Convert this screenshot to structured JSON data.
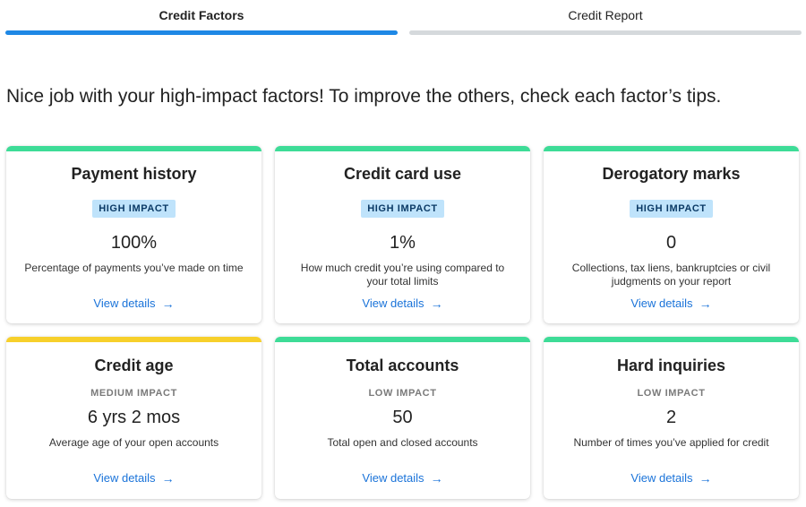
{
  "colors": {
    "tab_active": "#1e88e5",
    "tab_inactive": "#d5d9dc",
    "high_impact": "#3ddc97",
    "medium_impact": "#f7d02b",
    "badge_bg": "#bfe3fb",
    "badge_text": "#0b3a66",
    "link": "#1a73d9"
  },
  "tabs": [
    {
      "label": "Credit Factors",
      "active": true
    },
    {
      "label": "Credit Report",
      "active": false
    }
  ],
  "intro": "Nice job with your high-impact factors! To improve the others, check each factor’s tips.",
  "cards": [
    {
      "title": "Payment history",
      "impact": "HIGH IMPACT",
      "value": "100%",
      "description": "Percentage of payments you’ve made on time",
      "link": "View details",
      "accent": "green"
    },
    {
      "title": "Credit card use",
      "impact": "HIGH IMPACT",
      "value": "1%",
      "description": "How much credit you’re using compared to your total limits",
      "link": "View details",
      "accent": "green"
    },
    {
      "title": "Derogatory marks",
      "impact": "HIGH IMPACT",
      "value": "0",
      "description": "Collections, tax liens, bankruptcies or civil judgments on your report",
      "link": "View details",
      "accent": "green"
    },
    {
      "title": "Credit age",
      "impact": "MEDIUM IMPACT",
      "value": "6 yrs 2 mos",
      "description": "Average age of your open accounts",
      "link": "View details",
      "accent": "yellow"
    },
    {
      "title": "Total accounts",
      "impact": "LOW IMPACT",
      "value": "50",
      "description": "Total open and closed accounts",
      "link": "View details",
      "accent": "green"
    },
    {
      "title": "Hard inquiries",
      "impact": "LOW IMPACT",
      "value": "2",
      "description": "Number of times you’ve applied for credit",
      "link": "View details",
      "accent": "green"
    }
  ]
}
